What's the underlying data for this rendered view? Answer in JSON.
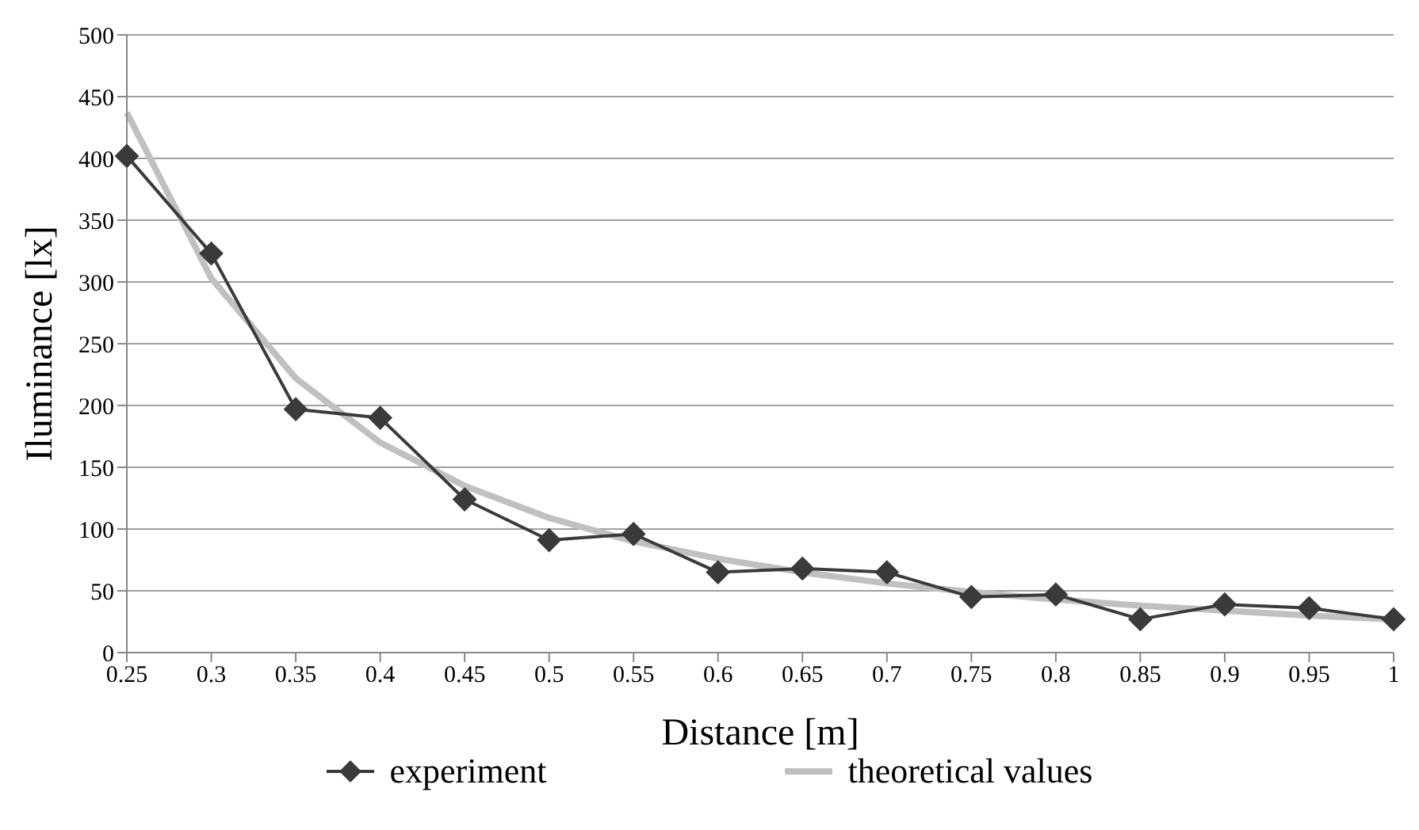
{
  "chart_data": {
    "type": "line",
    "xlabel": "Distance  [m]",
    "ylabel": "Iluminance  [lx]",
    "categories": [
      "0.25",
      "0.3",
      "0.35",
      "0.4",
      "0.45",
      "0.5",
      "0.55",
      "0.6",
      "0.65",
      "0.7",
      "0.75",
      "0.8",
      "0.85",
      "0.9",
      "0.95",
      "1"
    ],
    "series": [
      {
        "name": "experiment",
        "color": "#3a3a3a",
        "marker": "diamond",
        "values": [
          402,
          323,
          197,
          190,
          124,
          91,
          96,
          65,
          68,
          65,
          45,
          47,
          27,
          39,
          36,
          27
        ]
      },
      {
        "name": "theoretical values",
        "color": "#c0c0c0",
        "marker": "none",
        "values": [
          437,
          303,
          222,
          170,
          135,
          109,
          90,
          76,
          65,
          56,
          49,
          43,
          38,
          34,
          30,
          27
        ]
      }
    ],
    "ylim": [
      0,
      500
    ],
    "yticks": [
      0,
      50,
      100,
      150,
      200,
      250,
      300,
      350,
      400,
      450,
      500
    ],
    "grid": "y",
    "legend": "bottom"
  }
}
